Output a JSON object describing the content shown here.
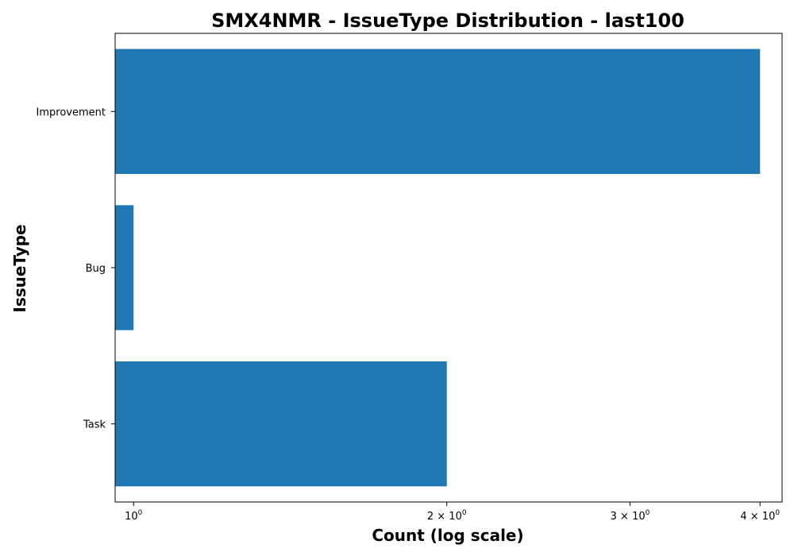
{
  "chart_data": {
    "type": "bar",
    "orientation": "horizontal",
    "title": "SMX4NMR - IssueType Distribution - last100",
    "xlabel": "Count (log scale)",
    "ylabel": "IssueType",
    "x_scale": "log",
    "xlim": [
      0.96,
      4.2
    ],
    "categories": [
      "Improvement",
      "Bug",
      "Task"
    ],
    "values": [
      4,
      1,
      2
    ],
    "bar_color": "#1f77b4",
    "x_ticks": [
      {
        "value": 1,
        "mantissa": "",
        "base": "10",
        "exp": "0"
      },
      {
        "value": 2,
        "mantissa": "2 × ",
        "base": "10",
        "exp": "0"
      },
      {
        "value": 3,
        "mantissa": "3 × ",
        "base": "10",
        "exp": "0"
      },
      {
        "value": 4,
        "mantissa": "4 × ",
        "base": "10",
        "exp": "0"
      }
    ],
    "grid": false,
    "legend": false
  }
}
